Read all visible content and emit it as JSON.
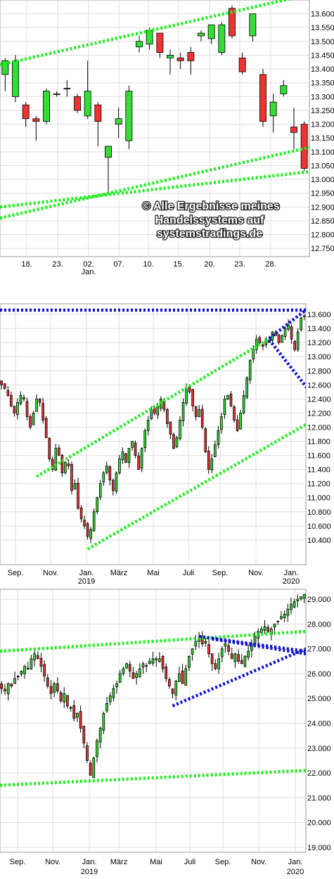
{
  "chart_data": [
    {
      "type": "candlestick",
      "title": "",
      "xlabel": "",
      "ylabel": "",
      "ylim": [
        12.72,
        13.65
      ],
      "y_ticks": [
        "13.600",
        "13.550",
        "13.500",
        "13.450",
        "13.400",
        "13.350",
        "13.300",
        "13.250",
        "13.200",
        "13.150",
        "13.100",
        "13.050",
        "13.000",
        "12.950",
        "12.900",
        "12.850",
        "12.800",
        "12.750"
      ],
      "x_ticks": [
        {
          "label": "18.",
          "sub": ""
        },
        {
          "label": "23.",
          "sub": ""
        },
        {
          "label": "02.",
          "sub": "Jan."
        },
        {
          "label": "07.",
          "sub": ""
        },
        {
          "label": "10.",
          "sub": ""
        },
        {
          "label": "15.",
          "sub": ""
        },
        {
          "label": "20.",
          "sub": ""
        },
        {
          "label": "23.",
          "sub": ""
        },
        {
          "label": "28.",
          "sub": ""
        }
      ],
      "grid": true,
      "candles": [
        [
          13.38,
          13.43,
          13.44,
          13.32
        ],
        [
          13.3,
          13.43,
          13.45,
          13.28
        ],
        [
          13.27,
          13.22,
          13.28,
          13.19
        ],
        [
          13.22,
          13.21,
          13.23,
          13.14
        ],
        [
          13.21,
          13.32,
          13.33,
          13.2
        ],
        [
          13.31,
          13.31,
          13.32,
          13.3
        ],
        [
          13.33,
          13.33,
          13.36,
          13.3
        ],
        [
          13.3,
          13.25,
          13.31,
          13.24
        ],
        [
          13.23,
          13.32,
          13.43,
          13.22
        ],
        [
          13.27,
          13.21,
          13.28,
          13.12
        ],
        [
          13.08,
          13.12,
          13.12,
          12.95
        ],
        [
          13.2,
          13.22,
          13.26,
          13.15
        ],
        [
          13.14,
          13.32,
          13.34,
          13.11
        ],
        [
          13.48,
          13.5,
          13.52,
          13.46
        ],
        [
          13.49,
          13.54,
          13.55,
          13.47
        ],
        [
          13.53,
          13.46,
          13.53,
          13.44
        ],
        [
          13.44,
          13.45,
          13.47,
          13.38
        ],
        [
          13.44,
          13.43,
          13.46,
          13.4
        ],
        [
          13.46,
          13.43,
          13.48,
          13.38
        ],
        [
          13.52,
          13.53,
          13.54,
          13.5
        ],
        [
          13.51,
          13.56,
          13.56,
          13.49
        ],
        [
          13.46,
          13.56,
          13.57,
          13.45
        ],
        [
          13.62,
          13.52,
          13.63,
          13.51
        ],
        [
          13.44,
          13.39,
          13.46,
          13.38
        ],
        [
          13.52,
          13.6,
          13.6,
          13.5
        ],
        [
          13.38,
          13.21,
          13.4,
          13.19
        ],
        [
          13.23,
          13.28,
          13.31,
          13.17
        ],
        [
          13.31,
          13.34,
          13.36,
          13.3
        ],
        [
          13.19,
          13.17,
          13.26,
          13.11
        ],
        [
          13.2,
          13.04,
          13.21,
          13.03
        ]
      ],
      "trendlines": [
        {
          "color": "#22ee22",
          "from": [
            -0.5,
            13.415
          ],
          "to": [
            33,
            13.7
          ]
        },
        {
          "color": "#22ee22",
          "from": [
            -0.5,
            12.86
          ],
          "to": [
            30,
            13.12
          ]
        },
        {
          "color": "#22ee22",
          "from": [
            -0.5,
            12.9
          ],
          "to": [
            30,
            13.03
          ]
        }
      ],
      "watermark": [
        "© Alle Ergebnisse meines",
        "Handelssystems auf",
        "systemstradings.de"
      ]
    },
    {
      "type": "candlestick",
      "title": "",
      "xlabel": "",
      "ylabel": "",
      "ylim": [
        10.05,
        13.75
      ],
      "y_ticks": [
        "13.600",
        "13.400",
        "13.200",
        "13.000",
        "12.800",
        "12.600",
        "12.400",
        "12.200",
        "12.000",
        "11.800",
        "11.600",
        "11.400",
        "11.200",
        "11.000",
        "10.800",
        "10.600",
        "10.400"
      ],
      "x_ticks": [
        {
          "label": "Sep.",
          "sub": ""
        },
        {
          "label": "Nov.",
          "sub": ""
        },
        {
          "label": "Jan.",
          "sub": "2019"
        },
        {
          "label": "März",
          "sub": ""
        },
        {
          "label": "Mai",
          "sub": ""
        },
        {
          "label": "Juli",
          "sub": ""
        },
        {
          "label": "Sep.",
          "sub": ""
        },
        {
          "label": "Nov.",
          "sub": ""
        },
        {
          "label": "Jan.",
          "sub": "2020"
        }
      ],
      "grid": true,
      "closes": [
        12.6,
        12.55,
        12.45,
        12.3,
        12.2,
        12.35,
        12.45,
        12.4,
        12.15,
        12.0,
        12.2,
        12.4,
        12.35,
        12.1,
        11.85,
        11.55,
        11.4,
        11.7,
        11.6,
        11.35,
        11.5,
        11.45,
        11.1,
        11.2,
        10.85,
        10.7,
        10.6,
        10.45,
        10.55,
        10.8,
        11.0,
        11.2,
        11.35,
        11.45,
        11.25,
        11.1,
        11.35,
        11.55,
        11.65,
        11.5,
        11.7,
        11.8,
        11.6,
        11.4,
        11.7,
        11.95,
        12.1,
        12.25,
        12.2,
        12.3,
        12.4,
        12.25,
        12.05,
        11.9,
        11.7,
        11.85,
        12.1,
        12.35,
        12.55,
        12.5,
        12.3,
        12.15,
        12.25,
        12.0,
        11.65,
        11.4,
        11.55,
        11.75,
        11.95,
        12.15,
        12.4,
        12.45,
        12.3,
        12.1,
        11.95,
        12.2,
        12.45,
        12.7,
        12.95,
        13.1,
        13.25,
        13.2,
        13.15,
        13.25,
        13.2,
        13.35,
        13.3,
        13.2,
        13.3,
        13.4,
        13.45,
        13.25,
        13.1,
        13.35,
        13.55,
        13.58
      ],
      "trendlines": [
        {
          "color": "#22ee22",
          "from": [
            11,
            11.3
          ],
          "to": [
            85,
            13.28
          ]
        },
        {
          "color": "#22ee22",
          "from": [
            27,
            10.27
          ],
          "to": [
            96,
            12.05
          ]
        },
        {
          "color": "#1111cc",
          "from": [
            -0.5,
            13.66
          ],
          "to": [
            96,
            13.66
          ]
        },
        {
          "color": "#1111cc",
          "from": [
            84,
            13.26
          ],
          "to": [
            96,
            13.68
          ]
        },
        {
          "color": "#1111cc",
          "from": [
            84,
            13.24
          ],
          "to": [
            96,
            12.55
          ]
        }
      ]
    },
    {
      "type": "candlestick",
      "title": "",
      "xlabel": "",
      "ylabel": "",
      "ylim": [
        18.8,
        29.4
      ],
      "y_ticks": [
        "29.000",
        "28.000",
        "27.000",
        "26.000",
        "25.000",
        "24.000",
        "23.000",
        "22.000",
        "21.000",
        "20.000",
        "19.000"
      ],
      "x_ticks": [
        {
          "label": "Sep.",
          "sub": ""
        },
        {
          "label": "Nov.",
          "sub": ""
        },
        {
          "label": "Jan.",
          "sub": "2019"
        },
        {
          "label": "März",
          "sub": ""
        },
        {
          "label": "Mai",
          "sub": ""
        },
        {
          "label": "Juli",
          "sub": ""
        },
        {
          "label": "Sep.",
          "sub": ""
        },
        {
          "label": "Nov.",
          "sub": ""
        },
        {
          "label": "Jan.",
          "sub": "2020"
        }
      ],
      "grid": true,
      "closes": [
        25.4,
        25.3,
        25.6,
        25.5,
        25.8,
        25.9,
        26.1,
        26.3,
        26.2,
        26.6,
        26.8,
        26.6,
        26.3,
        25.9,
        25.5,
        25.2,
        25.6,
        25.3,
        24.9,
        25.2,
        24.7,
        24.6,
        24.2,
        24.4,
        23.8,
        23.2,
        22.5,
        21.9,
        22.6,
        23.3,
        23.8,
        24.4,
        24.8,
        25.1,
        25.4,
        25.6,
        26.0,
        26.2,
        26.4,
        26.1,
        25.8,
        26.0,
        26.2,
        26.4,
        26.3,
        26.5,
        26.6,
        26.55,
        26.6,
        26.2,
        25.8,
        25.5,
        25.2,
        25.7,
        26.0,
        25.6,
        26.2,
        26.7,
        27.0,
        27.3,
        27.4,
        27.2,
        27.3,
        26.8,
        26.4,
        26.2,
        26.6,
        27.0,
        27.2,
        26.9,
        26.6,
        26.8,
        26.5,
        26.4,
        26.7,
        26.9,
        27.2,
        27.5,
        27.7,
        27.8,
        27.9,
        27.7,
        27.8,
        28.0,
        28.1,
        28.3,
        28.4,
        28.6,
        28.8,
        28.9,
        29.0,
        29.1,
        29.2
      ],
      "trendlines": [
        {
          "color": "#22ee22",
          "from": [
            -0.5,
            26.9
          ],
          "to": [
            92.5,
            27.7
          ]
        },
        {
          "color": "#22ee22",
          "from": [
            -0.5,
            21.5
          ],
          "to": [
            92.5,
            22.1
          ]
        },
        {
          "color": "#1111cc",
          "from": [
            60,
            27.5
          ],
          "to": [
            92.5,
            26.9
          ]
        },
        {
          "color": "#1111cc",
          "from": [
            52,
            24.7
          ],
          "to": [
            92.5,
            27.0
          ]
        },
        {
          "color": "#1111cc",
          "from": [
            64,
            27.4
          ],
          "to": [
            92.5,
            26.8
          ]
        }
      ]
    }
  ],
  "colors": {
    "up": "#33dd33",
    "down": "#ee3333",
    "wick": "#000000",
    "grid": "#dddddd",
    "green_line": "#22ee22",
    "blue_line": "#1111cc"
  }
}
